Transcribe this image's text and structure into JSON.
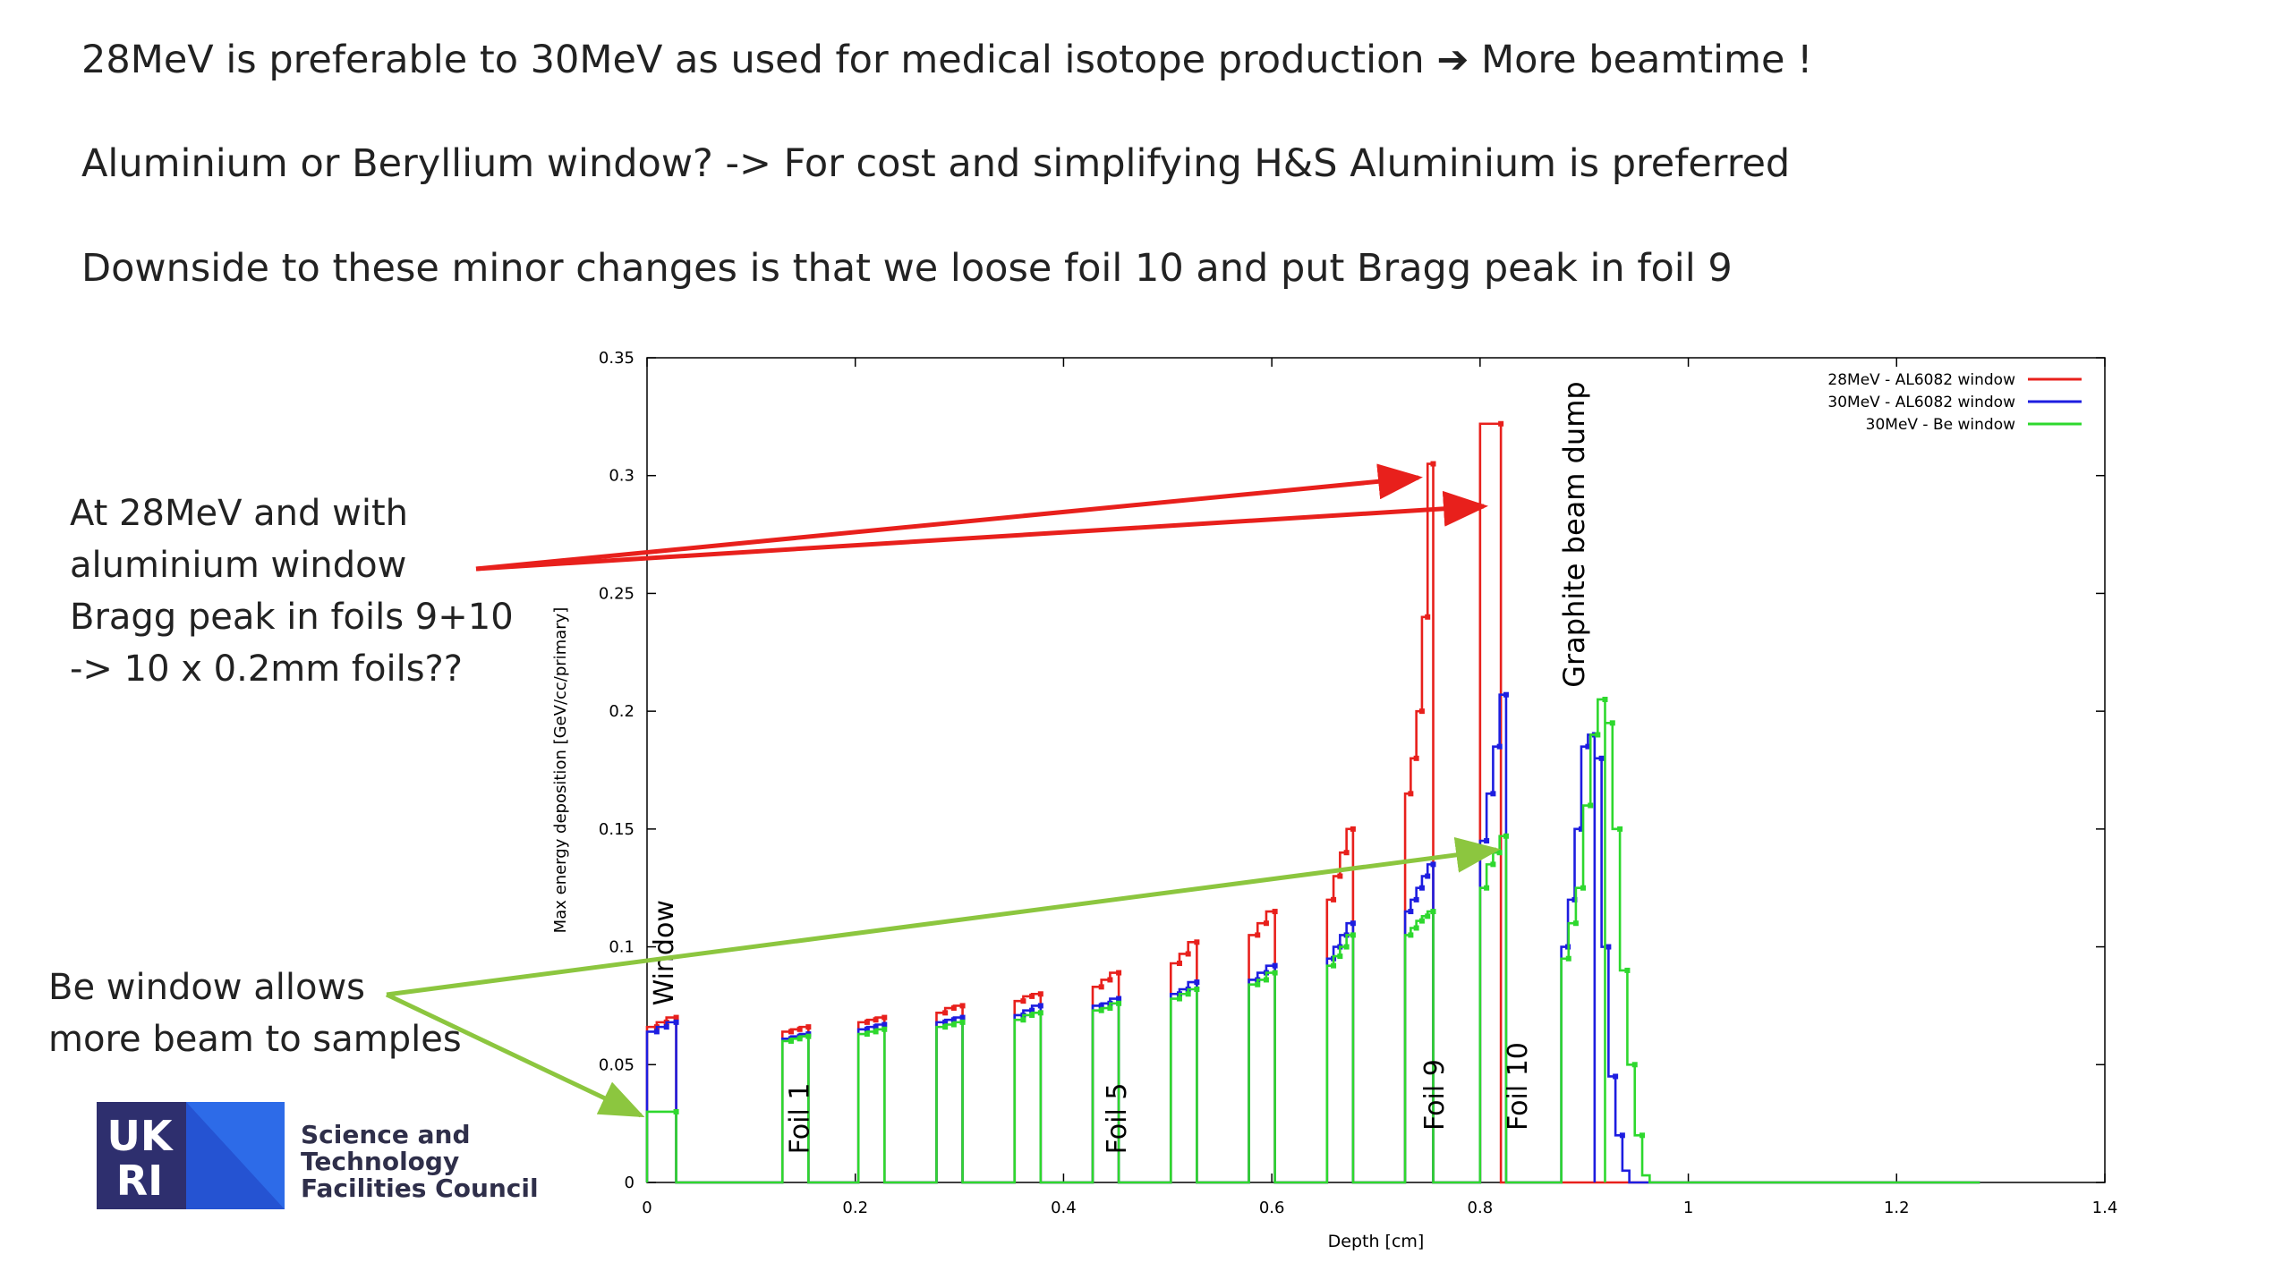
{
  "slide": {
    "bullets": [
      "28MeV is preferable to 30MeV as used for medical isotope production ➔ More beamtime !",
      "Aluminium or Beryllium window? -> For cost and simplifying H&S Aluminium is preferred",
      "Downside to these minor changes is that we loose foil 10 and put Bragg peak in foil 9"
    ],
    "callout_al": [
      "At 28MeV and with",
      "aluminium window",
      "Bragg peak in foils 9+10",
      "-> 10 x 0.2mm foils??"
    ],
    "callout_be": [
      "Be window allows",
      "more beam to samples"
    ],
    "logo": {
      "mark": "UKRI",
      "org_lines": [
        "Science and",
        "Technology",
        "Facilities Council"
      ]
    },
    "colors": {
      "red_arrow": "#e8201c",
      "green_arrow": "#8cc63f",
      "logo_navy": "#2e2f6e",
      "logo_blue": "#2d6be8"
    }
  },
  "chart_data": {
    "type": "line",
    "xlabel": "Depth [cm]",
    "ylabel": "Max energy deposition [GeV/cc/primary]",
    "xlim": [
      0,
      1.4
    ],
    "ylim": [
      0,
      0.35
    ],
    "xticks": [
      "0",
      "0.2",
      "0.4",
      "0.6",
      "0.8",
      "1",
      "1.2",
      "1.4"
    ],
    "yticks": [
      "0",
      "0.05",
      "0.1",
      "0.15",
      "0.2",
      "0.25",
      "0.3",
      "0.35"
    ],
    "legend_position": "top-right",
    "grid": false,
    "annotations": [
      "Window",
      "Foil 1",
      "Foil 5",
      "Foil 9",
      "Foil 10",
      "Graphite beam dump"
    ],
    "series": [
      {
        "name": "28MeV - AL6082 window",
        "color": "#e8201c",
        "segments": [
          {
            "x0": 0.0,
            "x1": 0.028,
            "y": [
              0.066,
              0.068,
              0.07
            ]
          },
          {
            "x0": 0.13,
            "x1": 0.155,
            "y": [
              0.064,
              0.065,
              0.066
            ]
          },
          {
            "x0": 0.203,
            "x1": 0.228,
            "y": [
              0.068,
              0.069,
              0.07
            ]
          },
          {
            "x0": 0.278,
            "x1": 0.303,
            "y": [
              0.072,
              0.074,
              0.075
            ]
          },
          {
            "x0": 0.353,
            "x1": 0.378,
            "y": [
              0.077,
              0.079,
              0.08
            ]
          },
          {
            "x0": 0.428,
            "x1": 0.453,
            "y": [
              0.083,
              0.086,
              0.089
            ]
          },
          {
            "x0": 0.503,
            "x1": 0.528,
            "y": [
              0.093,
              0.097,
              0.102
            ]
          },
          {
            "x0": 0.578,
            "x1": 0.603,
            "y": [
              0.105,
              0.11,
              0.115
            ]
          },
          {
            "x0": 0.653,
            "x1": 0.678,
            "y": [
              0.12,
              0.13,
              0.14,
              0.15
            ]
          },
          {
            "x0": 0.728,
            "x1": 0.755,
            "y": [
              0.165,
              0.18,
              0.2,
              0.24,
              0.305
            ]
          },
          {
            "x0": 0.8,
            "x1": 0.82,
            "y": [
              0.322
            ]
          }
        ]
      },
      {
        "name": "30MeV - AL6082 window",
        "color": "#1d1de0",
        "segments": [
          {
            "x0": 0.0,
            "x1": 0.028,
            "y": [
              0.064,
              0.066,
              0.068
            ]
          },
          {
            "x0": 0.13,
            "x1": 0.155,
            "y": [
              0.061,
              0.062,
              0.063
            ]
          },
          {
            "x0": 0.203,
            "x1": 0.228,
            "y": [
              0.065,
              0.066,
              0.067
            ]
          },
          {
            "x0": 0.278,
            "x1": 0.303,
            "y": [
              0.068,
              0.069,
              0.07
            ]
          },
          {
            "x0": 0.353,
            "x1": 0.378,
            "y": [
              0.071,
              0.073,
              0.075
            ]
          },
          {
            "x0": 0.428,
            "x1": 0.453,
            "y": [
              0.075,
              0.076,
              0.078
            ]
          },
          {
            "x0": 0.503,
            "x1": 0.528,
            "y": [
              0.08,
              0.082,
              0.085
            ]
          },
          {
            "x0": 0.578,
            "x1": 0.603,
            "y": [
              0.086,
              0.089,
              0.092
            ]
          },
          {
            "x0": 0.653,
            "x1": 0.678,
            "y": [
              0.095,
              0.1,
              0.105,
              0.11
            ]
          },
          {
            "x0": 0.728,
            "x1": 0.755,
            "y": [
              0.115,
              0.12,
              0.125,
              0.13,
              0.135
            ]
          },
          {
            "x0": 0.8,
            "x1": 0.825,
            "y": [
              0.145,
              0.165,
              0.185,
              0.207
            ]
          },
          {
            "x0": 0.878,
            "x1": 0.91,
            "y": [
              0.1,
              0.12,
              0.15,
              0.185,
              0.19
            ]
          },
          {
            "x0": 0.91,
            "x1": 0.95,
            "y": [
              0.18,
              0.1,
              0.045,
              0.02,
              0.005,
              0.0
            ]
          }
        ]
      },
      {
        "name": "30MeV - Be window",
        "color": "#2ed82e",
        "segments": [
          {
            "x0": 0.0,
            "x1": 0.028,
            "y": [
              0.03
            ]
          },
          {
            "x0": 0.13,
            "x1": 0.155,
            "y": [
              0.06,
              0.061,
              0.062
            ]
          },
          {
            "x0": 0.203,
            "x1": 0.228,
            "y": [
              0.063,
              0.064,
              0.065
            ]
          },
          {
            "x0": 0.278,
            "x1": 0.303,
            "y": [
              0.066,
              0.067,
              0.068
            ]
          },
          {
            "x0": 0.353,
            "x1": 0.378,
            "y": [
              0.069,
              0.071,
              0.072
            ]
          },
          {
            "x0": 0.428,
            "x1": 0.453,
            "y": [
              0.073,
              0.074,
              0.076
            ]
          },
          {
            "x0": 0.503,
            "x1": 0.528,
            "y": [
              0.078,
              0.08,
              0.082
            ]
          },
          {
            "x0": 0.578,
            "x1": 0.603,
            "y": [
              0.084,
              0.086,
              0.089
            ]
          },
          {
            "x0": 0.653,
            "x1": 0.678,
            "y": [
              0.092,
              0.096,
              0.1,
              0.105
            ]
          },
          {
            "x0": 0.728,
            "x1": 0.755,
            "y": [
              0.105,
              0.108,
              0.111,
              0.113,
              0.115
            ]
          },
          {
            "x0": 0.8,
            "x1": 0.825,
            "y": [
              0.125,
              0.135,
              0.14,
              0.147
            ]
          },
          {
            "x0": 0.878,
            "x1": 0.92,
            "y": [
              0.095,
              0.11,
              0.125,
              0.16,
              0.19,
              0.205
            ]
          },
          {
            "x0": 0.92,
            "x1": 0.97,
            "y": [
              0.195,
              0.15,
              0.09,
              0.05,
              0.02,
              0.003,
              0.0
            ]
          }
        ]
      }
    ],
    "baseline_to": 1.28
  }
}
